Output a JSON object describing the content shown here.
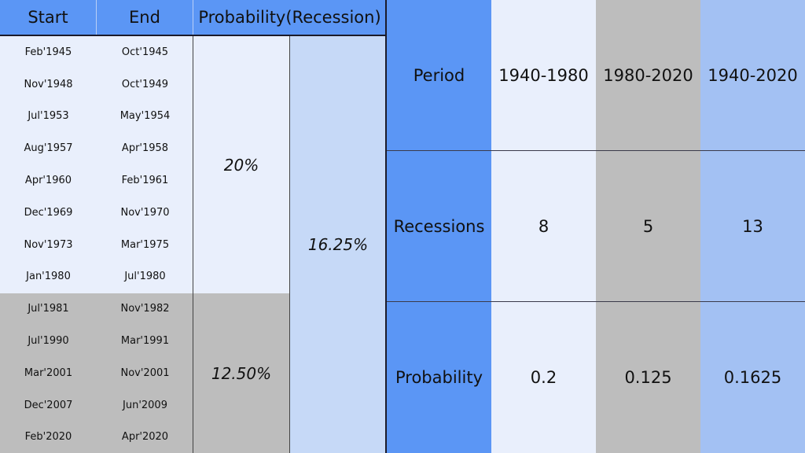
{
  "left_table": {
    "headers": {
      "start": "Start",
      "end": "End",
      "probability": "Probability(Recession)"
    },
    "rows": [
      {
        "start": "Feb'1945",
        "end": "Oct'1945"
      },
      {
        "start": "Nov'1948",
        "end": "Oct'1949"
      },
      {
        "start": "Jul'1953",
        "end": "May'1954"
      },
      {
        "start": "Aug'1957",
        "end": "Apr'1958"
      },
      {
        "start": "Apr'1960",
        "end": "Feb'1961"
      },
      {
        "start": "Dec'1969",
        "end": "Nov'1970"
      },
      {
        "start": "Nov'1973",
        "end": "Mar'1975"
      },
      {
        "start": "Jan'1980",
        "end": "Jul'1980"
      },
      {
        "start": "Jul'1981",
        "end": "Nov'1982"
      },
      {
        "start": "Jul'1990",
        "end": "Mar'1991"
      },
      {
        "start": "Mar'2001",
        "end": "Nov'2001"
      },
      {
        "start": "Dec'2007",
        "end": "Jun'2009"
      },
      {
        "start": "Feb'2020",
        "end": "Apr'2020"
      }
    ],
    "prob_1940_1980": "20%",
    "prob_1980_2020": "12.50%",
    "prob_total": "16.25%"
  },
  "right_table": {
    "row_labels": {
      "period": "Period",
      "recessions": "Recessions",
      "probability": "Probability"
    },
    "columns": [
      {
        "period": "1940-1980",
        "recessions": "8",
        "probability": "0.2"
      },
      {
        "period": "1980-2020",
        "recessions": "5",
        "probability": "0.125"
      },
      {
        "period": "1940-2020",
        "recessions": "13",
        "probability": "0.1625"
      }
    ]
  },
  "colors": {
    "header_blue": "#5b96f5",
    "light_blue": "#e9effc",
    "gray": "#bdbdbd",
    "mid_blue": "#a3c1f3",
    "total_blue": "#c6d9f7"
  }
}
